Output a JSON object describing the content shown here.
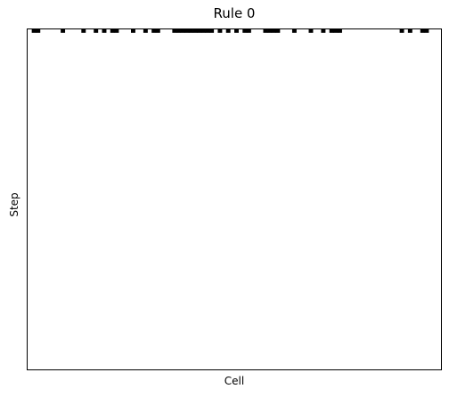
{
  "chart_data": {
    "type": "heatmap",
    "title": "Rule 0",
    "xlabel": "Cell",
    "ylabel": "Step",
    "n_cells": 100,
    "n_steps": 100,
    "cell_colors": {
      "on": "#000000",
      "off": "#ffffff"
    },
    "axis_color": "#000000",
    "x_ticks": false,
    "y_ticks": false,
    "initial_state_on_cells": [
      1,
      2,
      8,
      13,
      16,
      18,
      20,
      21,
      25,
      28,
      30,
      31,
      35,
      36,
      37,
      38,
      39,
      40,
      41,
      42,
      43,
      44,
      46,
      48,
      50,
      52,
      53,
      57,
      58,
      59,
      60,
      64,
      68,
      71,
      73,
      74,
      75,
      90,
      92,
      95,
      96
    ],
    "rows_after_first": "all cells off"
  }
}
